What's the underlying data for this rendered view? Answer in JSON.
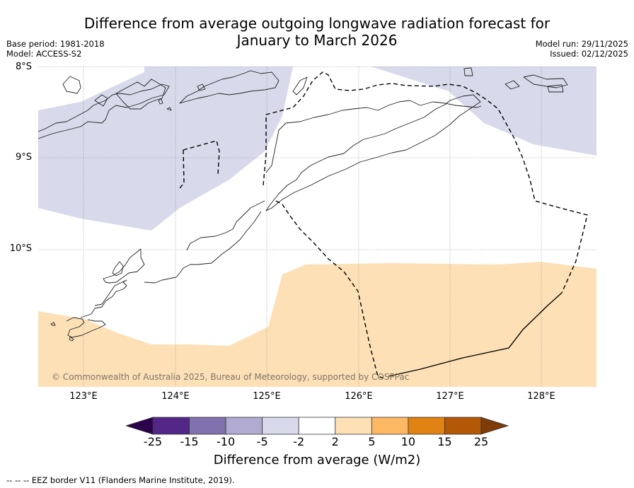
{
  "title_line1": "Difference from average outgoing longwave radiation forecast for",
  "title_line2": "January to March 2026",
  "meta_left": {
    "base_period": "Base period: 1981-2018",
    "model": "Model: ACCESS-S2"
  },
  "meta_right": {
    "model_run": "Model run: 29/11/2025",
    "issued": "Issued: 02/12/2025"
  },
  "map": {
    "lat_labels": [
      "8°S",
      "9°S",
      "10°S"
    ],
    "lon_labels": [
      "123°E",
      "124°E",
      "125°E",
      "126°E",
      "127°E",
      "128°E"
    ],
    "lat_range": [
      -11.5,
      -8.0
    ],
    "lon_range": [
      122.5,
      128.6
    ],
    "copyright": "© Commonwealth of Australia 2025, Bureau of Meteorology, supported by COSPPac",
    "regions": [
      {
        "name": "negative-anomaly-north",
        "category": "-5 to -2",
        "color": "#d8d9ea"
      },
      {
        "name": "positive-anomaly-south",
        "category": "2 to 5",
        "color": "#fde0b6"
      }
    ]
  },
  "colorbar": {
    "label": "Difference from average (W/m2)",
    "ticks": [
      "-25",
      "-15",
      "-10",
      "-5",
      "-2",
      "2",
      "5",
      "10",
      "15",
      "25"
    ],
    "colors": [
      "#532787",
      "#7f72ad",
      "#b1abd2",
      "#d8d9ea",
      "#ffffff",
      "#fde0b6",
      "#fdb863",
      "#e08214",
      "#b35806"
    ],
    "extend_low_color": "#2d004b",
    "extend_high_color": "#7f3b08"
  },
  "footer": "--  --  -- EEZ border V11 (Flanders Marine Institute, 2019)."
}
